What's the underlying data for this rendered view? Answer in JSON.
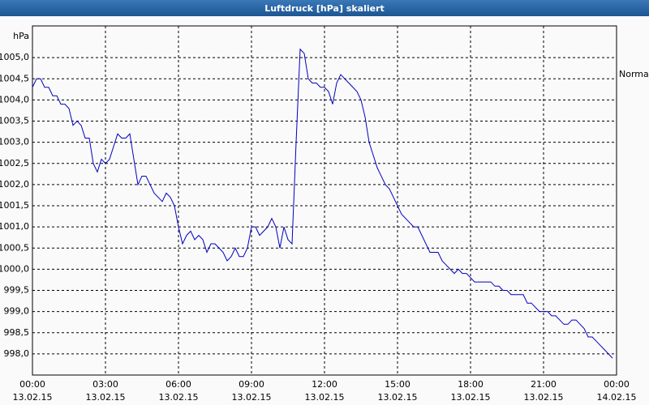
{
  "chart_data": {
    "type": "line",
    "title": "Luftdruck [hPa] skaliert",
    "y_unit": "hPa",
    "reference": {
      "label": "Normal",
      "value": 1004.6
    },
    "xlim": [
      0,
      1440
    ],
    "ylim": [
      997.5,
      1005.75
    ],
    "grid": true,
    "xticks": [
      {
        "value": 0,
        "label": "00:00"
      },
      {
        "value": 180,
        "label": "03:00"
      },
      {
        "value": 360,
        "label": "06:00"
      },
      {
        "value": 540,
        "label": "09:00"
      },
      {
        "value": 720,
        "label": "12:00"
      },
      {
        "value": 900,
        "label": "15:00"
      },
      {
        "value": 1080,
        "label": "18:00"
      },
      {
        "value": 1260,
        "label": "21:00"
      },
      {
        "value": 1440,
        "label": "00:00"
      }
    ],
    "xtick_dates": [
      "13.02.15",
      "13.02.15",
      "13.02.15",
      "13.02.15",
      "13.02.15",
      "13.02.15",
      "13.02.15",
      "13.02.15",
      "14.02.15"
    ],
    "yticks": [
      {
        "value": 998,
        "label": "998,0"
      },
      {
        "value": 998.5,
        "label": "998,5"
      },
      {
        "value": 999,
        "label": "999,0"
      },
      {
        "value": 999.5,
        "label": "999,5"
      },
      {
        "value": 1000,
        "label": "1000,0"
      },
      {
        "value": 1000.5,
        "label": "1000,5"
      },
      {
        "value": 1001,
        "label": "1001,0"
      },
      {
        "value": 1001.5,
        "label": "1001,5"
      },
      {
        "value": 1002,
        "label": "1002,0"
      },
      {
        "value": 1002.5,
        "label": "1002,5"
      },
      {
        "value": 1003,
        "label": "1003,0"
      },
      {
        "value": 1003.5,
        "label": "1003,5"
      },
      {
        "value": 1004,
        "label": "1004,0"
      },
      {
        "value": 1004.5,
        "label": "1004,5"
      },
      {
        "value": 1005,
        "label": "1005,0"
      }
    ],
    "x": [
      0,
      10,
      20,
      30,
      40,
      50,
      60,
      70,
      80,
      90,
      100,
      110,
      120,
      130,
      140,
      150,
      160,
      170,
      180,
      190,
      200,
      210,
      220,
      230,
      240,
      250,
      260,
      270,
      280,
      290,
      300,
      310,
      320,
      330,
      340,
      350,
      360,
      370,
      380,
      390,
      400,
      410,
      420,
      430,
      440,
      450,
      460,
      470,
      480,
      490,
      500,
      510,
      520,
      530,
      540,
      550,
      560,
      570,
      580,
      590,
      600,
      610,
      620,
      630,
      640,
      650,
      660,
      670,
      680,
      690,
      700,
      710,
      720,
      730,
      740,
      750,
      760,
      770,
      780,
      790,
      800,
      810,
      820,
      830,
      840,
      850,
      860,
      870,
      880,
      890,
      900,
      910,
      920,
      930,
      940,
      950,
      960,
      970,
      980,
      990,
      1000,
      1010,
      1020,
      1030,
      1040,
      1050,
      1060,
      1070,
      1080,
      1090,
      1100,
      1110,
      1120,
      1130,
      1140,
      1150,
      1160,
      1170,
      1180,
      1190,
      1200,
      1210,
      1220,
      1230,
      1240,
      1250,
      1260,
      1270,
      1280,
      1290,
      1300,
      1310,
      1320,
      1330,
      1340,
      1350,
      1360,
      1370,
      1380,
      1390,
      1400,
      1410,
      1420,
      1430
    ],
    "series": [
      {
        "color": "#0000c0",
        "values": [
          1004.3,
          1004.5,
          1004.5,
          1004.3,
          1004.3,
          1004.1,
          1004.1,
          1003.9,
          1003.9,
          1003.8,
          1003.4,
          1003.5,
          1003.4,
          1003.1,
          1003.1,
          1002.5,
          1002.3,
          1002.6,
          1002.5,
          1002.6,
          1002.9,
          1003.2,
          1003.1,
          1003.1,
          1003.2,
          1002.6,
          1002.0,
          1002.2,
          1002.2,
          1002.0,
          1001.8,
          1001.7,
          1001.6,
          1001.8,
          1001.7,
          1001.5,
          1001.0,
          1000.6,
          1000.8,
          1000.9,
          1000.7,
          1000.8,
          1000.7,
          1000.4,
          1000.6,
          1000.6,
          1000.5,
          1000.4,
          1000.2,
          1000.3,
          1000.5,
          1000.3,
          1000.3,
          1000.5,
          1001.0,
          1001.0,
          1000.8,
          1000.9,
          1001.0,
          1001.2,
          1001.0,
          1000.5,
          1001.0,
          1000.7,
          1000.6,
          1003.0,
          1005.2,
          1005.1,
          1004.5,
          1004.4,
          1004.4,
          1004.3,
          1004.3,
          1004.2,
          1003.9,
          1004.4,
          1004.6,
          1004.5,
          1004.4,
          1004.3,
          1004.2,
          1004.0,
          1003.6,
          1003.0,
          1002.7,
          1002.4,
          1002.2,
          1002.0,
          1001.9,
          1001.7,
          1001.5,
          1001.3,
          1001.2,
          1001.1,
          1001.0,
          1001.0,
          1000.8,
          1000.6,
          1000.4,
          1000.4,
          1000.4,
          1000.2,
          1000.1,
          1000.0,
          999.9,
          1000.0,
          999.9,
          999.9,
          999.8,
          999.7,
          999.7,
          999.7,
          999.7,
          999.7,
          999.6,
          999.6,
          999.5,
          999.5,
          999.4,
          999.4,
          999.4,
          999.4,
          999.2,
          999.2,
          999.1,
          999.0,
          999.0,
          999.0,
          998.9,
          998.9,
          998.8,
          998.7,
          998.7,
          998.8,
          998.8,
          998.7,
          998.6,
          998.4,
          998.4,
          998.3,
          998.2,
          998.1,
          998.0,
          997.9
        ]
      }
    ]
  }
}
